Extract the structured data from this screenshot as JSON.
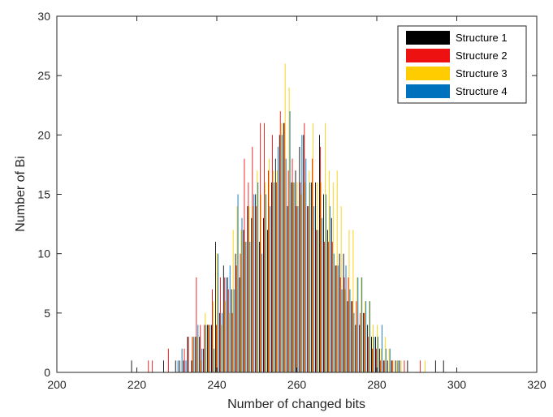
{
  "chart_data": {
    "type": "bar",
    "title": "",
    "xlabel": "Number of changed bits",
    "ylabel": "Number of Bi",
    "xlim": [
      200,
      320
    ],
    "ylim": [
      0,
      30
    ],
    "xticks": [
      200,
      220,
      240,
      260,
      280,
      300,
      320
    ],
    "yticks": [
      0,
      5,
      10,
      15,
      20,
      25,
      30
    ],
    "grid": false,
    "legend_position": "top-right",
    "x": [
      219,
      220,
      223,
      224,
      227,
      228,
      229,
      230,
      231,
      232,
      233,
      234,
      235,
      236,
      237,
      238,
      239,
      240,
      241,
      242,
      243,
      244,
      245,
      246,
      247,
      248,
      249,
      250,
      251,
      252,
      253,
      254,
      255,
      256,
      257,
      258,
      259,
      260,
      261,
      262,
      263,
      264,
      265,
      266,
      267,
      268,
      269,
      270,
      271,
      272,
      273,
      274,
      275,
      276,
      277,
      278,
      279,
      280,
      281,
      282,
      283,
      284,
      285,
      286,
      287,
      288,
      290,
      291,
      292,
      295,
      297
    ],
    "series": [
      {
        "name": "Structure 1",
        "color": "#000000",
        "values": [
          1,
          0,
          0,
          0,
          1,
          0,
          0,
          1,
          1,
          1,
          3,
          1,
          3,
          3,
          2,
          4,
          4,
          11,
          5,
          9,
          8,
          7,
          10,
          8,
          12,
          14,
          13,
          15,
          11,
          13,
          12,
          16,
          18,
          20,
          21,
          14,
          16,
          17,
          19,
          20,
          14,
          16,
          16,
          20,
          15,
          12,
          13,
          9,
          10,
          10,
          6,
          6,
          4,
          4,
          5,
          4,
          3,
          3,
          2,
          1,
          1,
          1,
          1,
          1,
          0,
          1,
          0,
          0,
          0,
          1,
          1
        ]
      },
      {
        "name": "Structure 2",
        "color": "#ee1111",
        "values": [
          0,
          0,
          1,
          1,
          0,
          2,
          0,
          0,
          0,
          2,
          3,
          3,
          8,
          4,
          4,
          4,
          7,
          4,
          8,
          8,
          7,
          5,
          9,
          10,
          18,
          16,
          19,
          14,
          21,
          21,
          17,
          20,
          16,
          22,
          21,
          17,
          18,
          14,
          16,
          21,
          14,
          18,
          12,
          19,
          11,
          11,
          11,
          9,
          8,
          8,
          8,
          6,
          6,
          5,
          5,
          3,
          2,
          2,
          1,
          1,
          0,
          1,
          0,
          0,
          1,
          0,
          0,
          1,
          0,
          0,
          0
        ]
      },
      {
        "name": "Structure 3",
        "color": "#ffcc00",
        "values": [
          0,
          0,
          0,
          0,
          0,
          0,
          0,
          0,
          0,
          0,
          0,
          3,
          3,
          1,
          5,
          4,
          6,
          10,
          4,
          6,
          5,
          12,
          14,
          12,
          11,
          14,
          14,
          17,
          15,
          16,
          18,
          17,
          17,
          21,
          26,
          24,
          16,
          16,
          15,
          16,
          17,
          21,
          16,
          16,
          21,
          17,
          16,
          17,
          14,
          7,
          12,
          12,
          8,
          8,
          6,
          6,
          4,
          4,
          2,
          3,
          2,
          1,
          1,
          1,
          0,
          0,
          0,
          0,
          1,
          0,
          0
        ]
      },
      {
        "name": "Structure 4",
        "color": "#0072bd",
        "values": [
          0,
          0,
          0,
          0,
          0,
          0,
          0,
          1,
          2,
          1,
          0,
          3,
          4,
          2,
          4,
          4,
          2,
          10,
          5,
          8,
          9,
          7,
          15,
          13,
          11,
          11,
          15,
          16,
          10,
          15,
          14,
          16,
          19,
          20,
          18,
          22,
          16,
          14,
          20,
          18,
          16,
          14,
          12,
          13,
          15,
          14,
          10,
          9,
          7,
          9,
          7,
          5,
          8,
          8,
          6,
          6,
          3,
          3,
          4,
          2,
          2,
          0,
          1,
          0,
          0,
          0,
          0,
          0,
          0,
          0,
          0
        ]
      }
    ]
  }
}
